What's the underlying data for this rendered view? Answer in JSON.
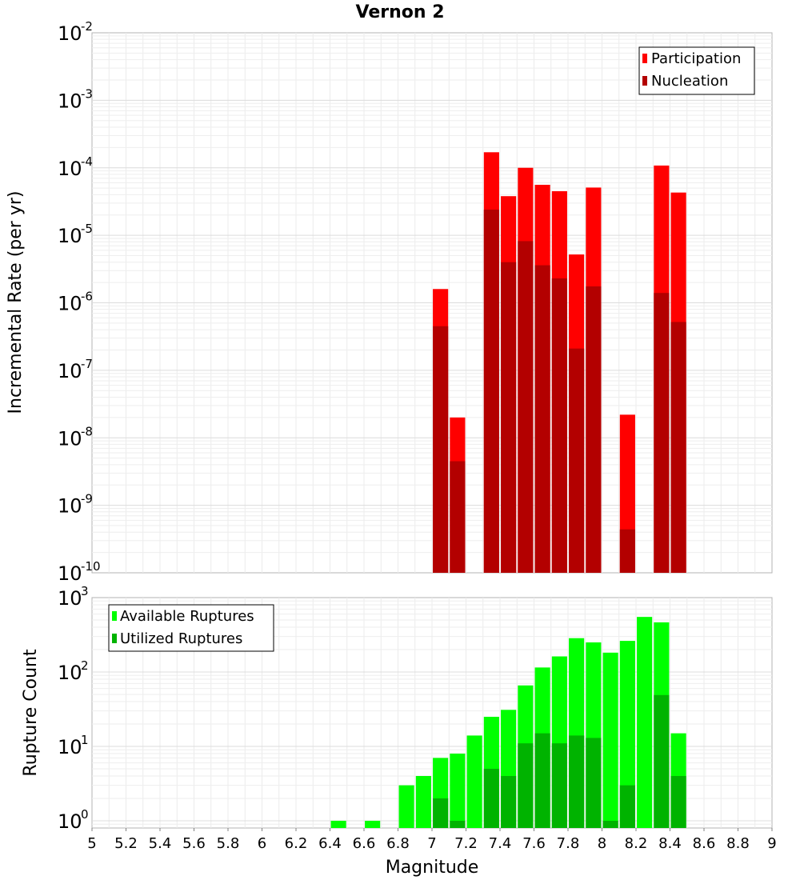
{
  "title": "Vernon 2",
  "x_axis": {
    "label": "Magnitude",
    "ticks": [
      "5",
      "5.2",
      "5.4",
      "5.6",
      "5.8",
      "6",
      "6.2",
      "6.4",
      "6.6",
      "6.8",
      "7",
      "7.2",
      "7.4",
      "7.6",
      "7.8",
      "8",
      "8.2",
      "8.4",
      "8.6",
      "8.8",
      "9"
    ]
  },
  "chart_data": [
    {
      "type": "bar",
      "panel": "top",
      "ylabel": "Incremental Rate (per yr)",
      "yscale": "log",
      "xlim": [
        5,
        9
      ],
      "ylim": [
        1e-10,
        0.01
      ],
      "ytick_base": "10",
      "ytick_exponents": [
        "-10",
        "-9",
        "-8",
        "-7",
        "-6",
        "-5",
        "-4",
        "-3",
        "-2"
      ],
      "bar_width": 0.09,
      "legend_position": "top-right",
      "x": [
        7.05,
        7.15,
        7.35,
        7.45,
        7.55,
        7.65,
        7.75,
        7.85,
        7.95,
        8.15,
        8.35,
        8.45
      ],
      "series": [
        {
          "name": "Participation",
          "color": "#ff0000",
          "values": [
            1.6e-06,
            2e-08,
            0.00017,
            3.8e-05,
            0.0001,
            5.6e-05,
            4.5e-05,
            5.2e-06,
            5.1e-05,
            2.2e-08,
            0.000108,
            4.3e-05
          ]
        },
        {
          "name": "Nucleation",
          "color": "#b30000",
          "values": [
            4.5e-07,
            4.5e-09,
            2.4e-05,
            4e-06,
            8.2e-06,
            3.6e-06,
            2.3e-06,
            2.1e-07,
            1.75e-06,
            4.4e-10,
            1.4e-06,
            5.2e-07
          ]
        }
      ]
    },
    {
      "type": "bar",
      "panel": "bottom",
      "ylabel": "Rupture Count",
      "yscale": "log",
      "xlim": [
        5,
        9
      ],
      "ylim": [
        0.8,
        1000
      ],
      "ytick_base": "10",
      "ytick_exponents": [
        "0",
        "1",
        "2",
        "3"
      ],
      "bar_width": 0.09,
      "legend_position": "top-left",
      "x": [
        6.45,
        6.65,
        6.85,
        6.95,
        7.05,
        7.15,
        7.25,
        7.35,
        7.45,
        7.55,
        7.65,
        7.75,
        7.85,
        7.95,
        8.05,
        8.15,
        8.25,
        8.35,
        8.45
      ],
      "series": [
        {
          "name": "Available Ruptures",
          "color": "#00ff00",
          "values": [
            1,
            1,
            3,
            4,
            7,
            8,
            14,
            25,
            31,
            66,
            115,
            162,
            285,
            250,
            182,
            262,
            550,
            465,
            15
          ]
        },
        {
          "name": "Utilized Ruptures",
          "color": "#00b300",
          "values": [
            0,
            0,
            0,
            0,
            2,
            1,
            0,
            5,
            4,
            11,
            15,
            11,
            14,
            13,
            1,
            3,
            0,
            49,
            4
          ]
        }
      ]
    }
  ]
}
